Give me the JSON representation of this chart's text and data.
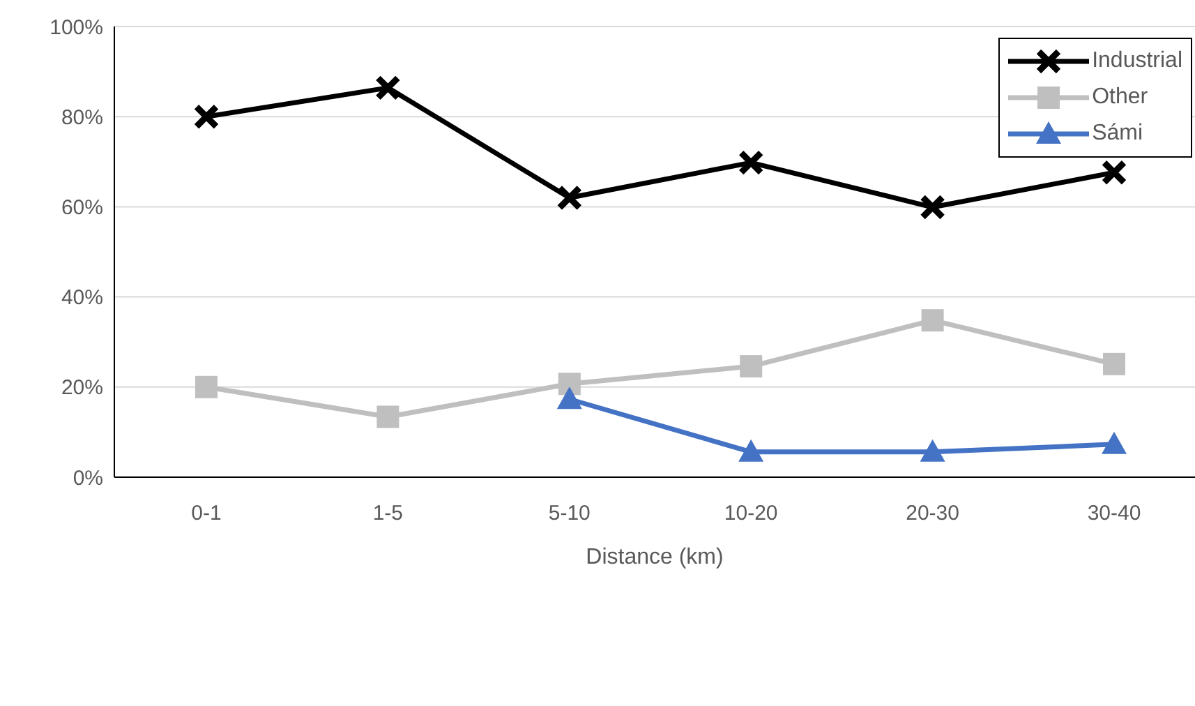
{
  "chart_data": {
    "type": "line",
    "xlabel": "Distance (km)",
    "categories": [
      "0-1",
      "1-5",
      "5-10",
      "10-20",
      "20-30",
      "30-40"
    ],
    "series": [
      {
        "name": "Industrial",
        "color": "#000000",
        "marker": "cross",
        "values": [
          80.0,
          86.4,
          62.0,
          69.8,
          59.9,
          67.6
        ]
      },
      {
        "name": "Other",
        "color": "#bfbfbf",
        "marker": "square",
        "values": [
          20.0,
          13.4,
          20.7,
          24.6,
          34.8,
          25.1
        ]
      },
      {
        "name": "Sámi",
        "color": "#4472c4",
        "marker": "triangle",
        "values": [
          null,
          null,
          17.3,
          5.6,
          5.6,
          7.3
        ]
      }
    ],
    "ylim": [
      0,
      100
    ],
    "yticks": [
      {
        "value": 0,
        "label": "0%"
      },
      {
        "value": 20,
        "label": "20%"
      },
      {
        "value": 40,
        "label": "40%"
      },
      {
        "value": 60,
        "label": "60%"
      },
      {
        "value": 80,
        "label": "80%"
      },
      {
        "value": 100,
        "label": "100%"
      }
    ],
    "grid": "y",
    "legend": "top right",
    "line_style": "solid"
  }
}
